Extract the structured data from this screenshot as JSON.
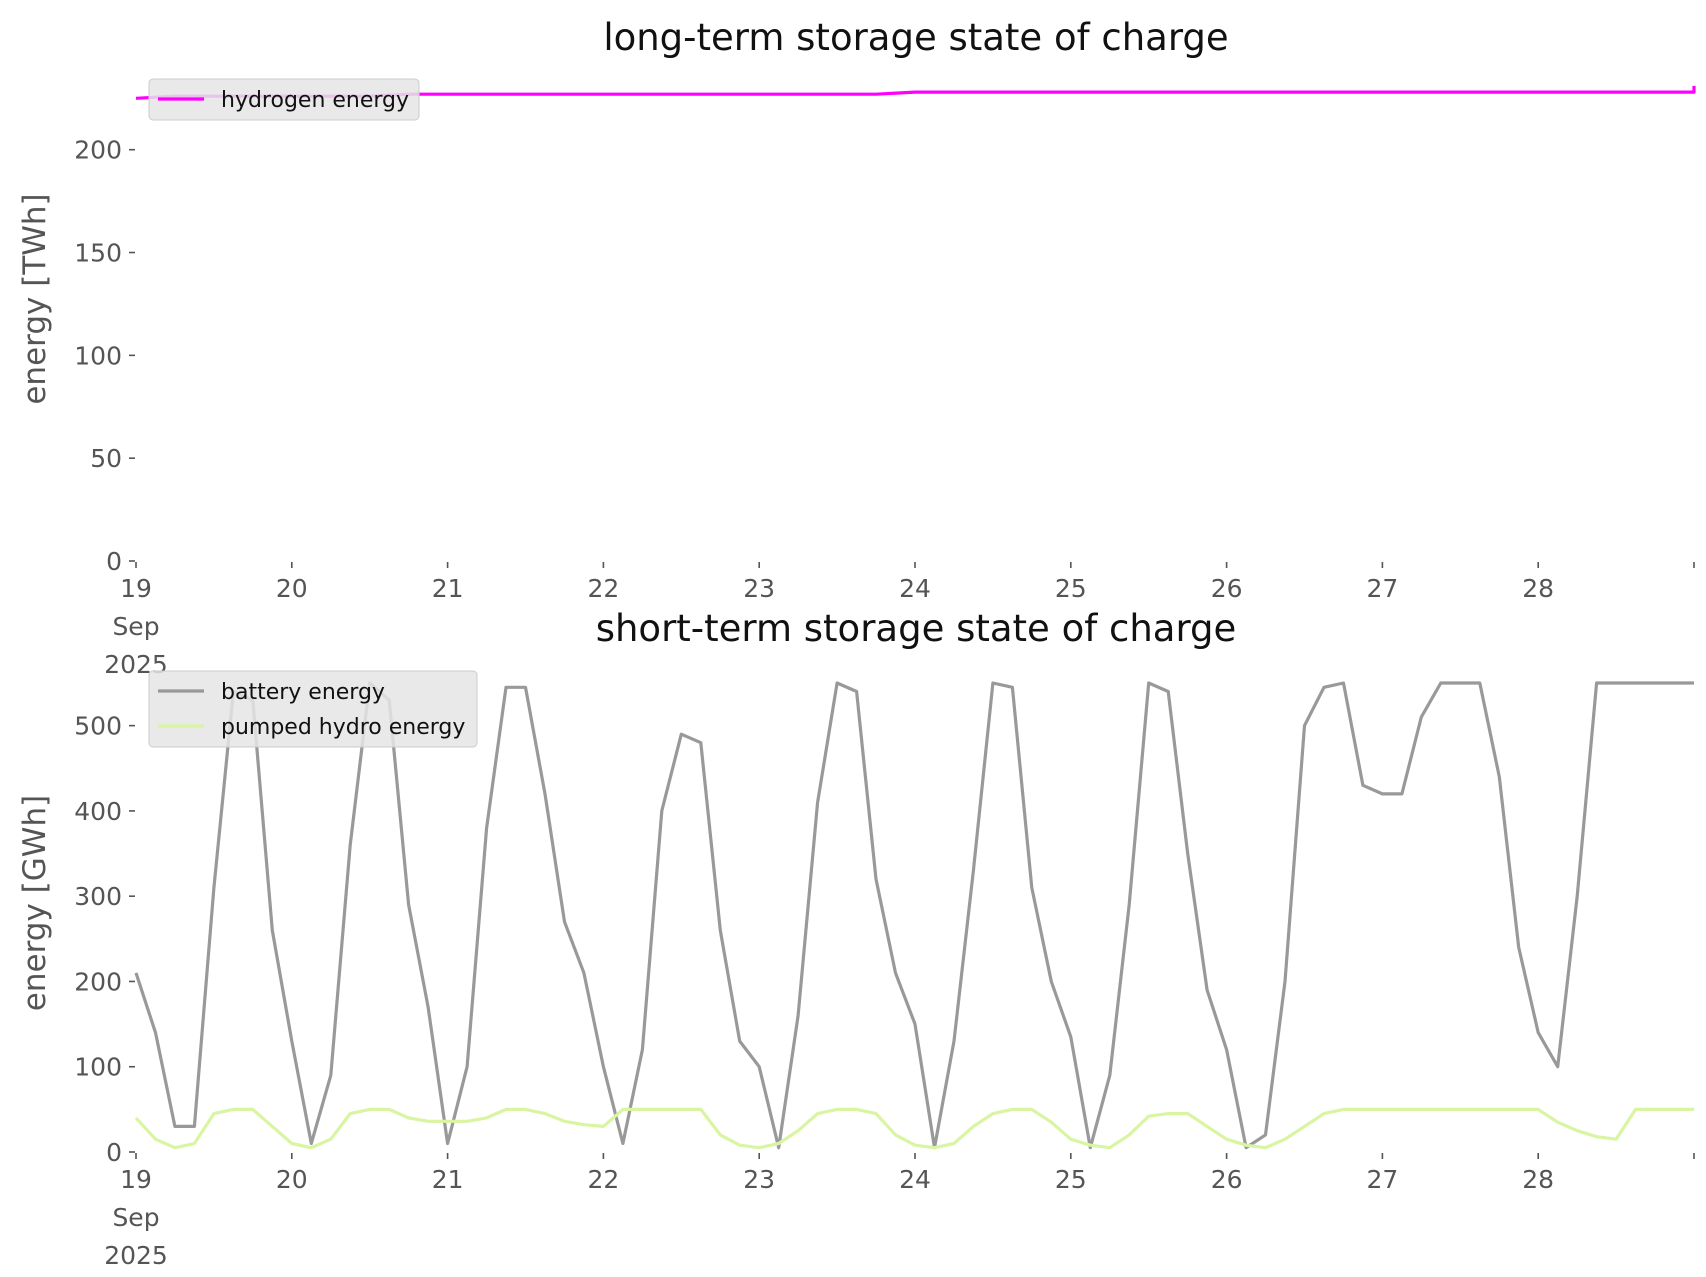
{
  "chart_data": [
    {
      "type": "line",
      "title": "long-term storage state of charge",
      "ylabel": "energy [TWh]",
      "xlabel": "",
      "ylim": [
        0,
        230
      ],
      "yticks": [
        0,
        50,
        100,
        150,
        200
      ],
      "xlim": [
        "2025-09-19",
        "2025-09-29"
      ],
      "xtick_labels": [
        "19\nSep\n2025",
        "20",
        "21",
        "22",
        "23",
        "24",
        "25",
        "26",
        "27",
        "28"
      ],
      "x_start": "2025-09-19",
      "x_step_hours": 6,
      "grid": false,
      "legend_position": "top-left",
      "series": [
        {
          "name": "hydrogen energy",
          "color": "#ff00ff",
          "values": [
            225,
            226,
            226,
            226,
            226,
            226,
            226,
            227,
            227,
            227,
            227,
            227,
            227,
            227,
            227,
            227,
            227,
            227,
            227,
            227,
            228,
            228,
            228,
            228,
            228,
            228,
            228,
            228,
            228,
            228,
            228,
            228,
            228,
            228,
            228,
            228,
            228,
            228,
            228,
            228,
            228,
            228,
            228,
            228,
            228,
            228,
            228,
            228,
            229,
            229,
            229,
            229,
            229,
            229,
            229,
            230,
            230,
            230,
            231,
            231
          ]
        }
      ]
    },
    {
      "type": "line",
      "title": "short-term storage state of charge",
      "ylabel": "energy [GWh]",
      "xlabel": "",
      "ylim": [
        0,
        550
      ],
      "yticks": [
        0,
        100,
        200,
        300,
        400,
        500
      ],
      "xlim": [
        "2025-09-19",
        "2025-09-29"
      ],
      "xtick_labels": [
        "19\nSep\n2025",
        "20",
        "21",
        "22",
        "23",
        "24",
        "25",
        "26",
        "27",
        "28"
      ],
      "x_start": "2025-09-19",
      "x_step_hours": 3,
      "grid": false,
      "legend_position": "top-left",
      "series": [
        {
          "name": "battery energy",
          "color": "#999999",
          "values": [
            210,
            140,
            30,
            30,
            310,
            540,
            530,
            260,
            130,
            10,
            90,
            360,
            550,
            530,
            290,
            170,
            10,
            100,
            380,
            545,
            545,
            420,
            270,
            210,
            100,
            10,
            120,
            400,
            490,
            480,
            260,
            130,
            100,
            5,
            160,
            410,
            550,
            540,
            320,
            210,
            150,
            5,
            130,
            330,
            550,
            545,
            310,
            200,
            135,
            5,
            90,
            290,
            550,
            540,
            350,
            190,
            120,
            5,
            20,
            200,
            500,
            545,
            550,
            430,
            420,
            420,
            510,
            550,
            550,
            550,
            440,
            240,
            140,
            100,
            300,
            550,
            550,
            550,
            550,
            550,
            550
          ]
        },
        {
          "name": "pumped hydro energy",
          "color": "#d9f5a1",
          "values": [
            40,
            15,
            5,
            10,
            45,
            50,
            50,
            30,
            10,
            5,
            15,
            45,
            50,
            50,
            40,
            36,
            36,
            36,
            40,
            50,
            50,
            45,
            36,
            32,
            30,
            50,
            50,
            50,
            50,
            50,
            20,
            8,
            5,
            10,
            25,
            45,
            50,
            50,
            45,
            20,
            8,
            5,
            10,
            30,
            45,
            50,
            50,
            35,
            15,
            8,
            5,
            20,
            42,
            45,
            45,
            30,
            15,
            8,
            5,
            15,
            30,
            45,
            50,
            50,
            50,
            50,
            50,
            50,
            50,
            50,
            50,
            50,
            50,
            35,
            25,
            18,
            15,
            50,
            50,
            50,
            50
          ]
        }
      ]
    }
  ]
}
